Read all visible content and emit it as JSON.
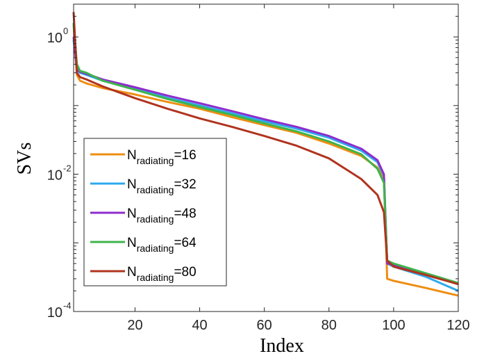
{
  "chart_data": {
    "type": "line",
    "xlabel": "Index",
    "ylabel": "SVs",
    "xlim": [
      1,
      120
    ],
    "ylim": [
      0.0001,
      3
    ],
    "yscale": "log",
    "xticks": [
      20,
      40,
      60,
      80,
      100,
      120
    ],
    "yticks": [
      {
        "value": 1,
        "base": "10",
        "exp": "0"
      },
      {
        "value": 0.01,
        "base": "10",
        "exp": "-2"
      },
      {
        "value": 0.0001,
        "base": "10",
        "exp": "-4"
      }
    ],
    "grid": false,
    "legend_position": "lower-left",
    "series": [
      {
        "name_main": "N",
        "name_sub": "radiating",
        "name_suffix": "=16",
        "color": "#EE8E12",
        "points": [
          [
            1,
            1.5
          ],
          [
            2,
            0.28
          ],
          [
            3,
            0.23
          ],
          [
            5,
            0.21
          ],
          [
            10,
            0.18
          ],
          [
            20,
            0.145
          ],
          [
            30,
            0.113
          ],
          [
            40,
            0.09
          ],
          [
            50,
            0.068
          ],
          [
            60,
            0.052
          ],
          [
            70,
            0.04
          ],
          [
            80,
            0.028
          ],
          [
            90,
            0.0185
          ],
          [
            95,
            0.0125
          ],
          [
            97,
            0.009
          ],
          [
            98,
            0.0003
          ],
          [
            100,
            0.00028
          ],
          [
            110,
            0.00022
          ],
          [
            120,
            0.00017
          ]
        ]
      },
      {
        "name_main": "N",
        "name_sub": "radiating",
        "name_suffix": "=32",
        "color": "#2CA9EE",
        "points": [
          [
            1,
            0.9
          ],
          [
            2,
            0.33
          ],
          [
            3,
            0.3
          ],
          [
            5,
            0.28
          ],
          [
            10,
            0.23
          ],
          [
            20,
            0.175
          ],
          [
            30,
            0.13
          ],
          [
            40,
            0.1
          ],
          [
            50,
            0.077
          ],
          [
            60,
            0.059
          ],
          [
            70,
            0.046
          ],
          [
            80,
            0.034
          ],
          [
            90,
            0.022
          ],
          [
            95,
            0.015
          ],
          [
            97,
            0.0095
          ],
          [
            98,
            0.0005
          ],
          [
            100,
            0.00045
          ],
          [
            110,
            0.00032
          ],
          [
            120,
            0.0002
          ]
        ]
      },
      {
        "name_main": "N",
        "name_sub": "radiating",
        "name_suffix": "=48",
        "color": "#8E2DCC",
        "points": [
          [
            1,
            1.0
          ],
          [
            2,
            0.34
          ],
          [
            3,
            0.31
          ],
          [
            5,
            0.29
          ],
          [
            10,
            0.24
          ],
          [
            20,
            0.185
          ],
          [
            30,
            0.14
          ],
          [
            40,
            0.108
          ],
          [
            50,
            0.083
          ],
          [
            60,
            0.063
          ],
          [
            70,
            0.049
          ],
          [
            80,
            0.036
          ],
          [
            90,
            0.0235
          ],
          [
            95,
            0.016
          ],
          [
            97,
            0.01
          ],
          [
            98,
            0.0005
          ],
          [
            100,
            0.00048
          ],
          [
            110,
            0.00035
          ],
          [
            120,
            0.00025
          ]
        ]
      },
      {
        "name_main": "N",
        "name_sub": "radiating",
        "name_suffix": "=64",
        "color": "#3FB44A",
        "points": [
          [
            1,
            1.6
          ],
          [
            2,
            0.4
          ],
          [
            3,
            0.32
          ],
          [
            5,
            0.3
          ],
          [
            10,
            0.23
          ],
          [
            20,
            0.17
          ],
          [
            30,
            0.125
          ],
          [
            40,
            0.095
          ],
          [
            50,
            0.073
          ],
          [
            60,
            0.055
          ],
          [
            70,
            0.042
          ],
          [
            80,
            0.03
          ],
          [
            90,
            0.0195
          ],
          [
            95,
            0.012
          ],
          [
            97,
            0.0075
          ],
          [
            98,
            0.00055
          ],
          [
            100,
            0.0005
          ],
          [
            110,
            0.00036
          ],
          [
            120,
            0.00026
          ]
        ]
      },
      {
        "name_main": "N",
        "name_sub": "radiating",
        "name_suffix": "=80",
        "color": "#B0341F",
        "points": [
          [
            1,
            2.3
          ],
          [
            2,
            0.3
          ],
          [
            3,
            0.26
          ],
          [
            5,
            0.24
          ],
          [
            10,
            0.19
          ],
          [
            20,
            0.128
          ],
          [
            30,
            0.09
          ],
          [
            40,
            0.065
          ],
          [
            50,
            0.049
          ],
          [
            60,
            0.036
          ],
          [
            70,
            0.026
          ],
          [
            80,
            0.017
          ],
          [
            90,
            0.0085
          ],
          [
            95,
            0.005
          ],
          [
            97,
            0.0028
          ],
          [
            98,
            0.00055
          ],
          [
            100,
            0.00045
          ],
          [
            110,
            0.00034
          ],
          [
            120,
            0.00025
          ]
        ]
      }
    ]
  }
}
